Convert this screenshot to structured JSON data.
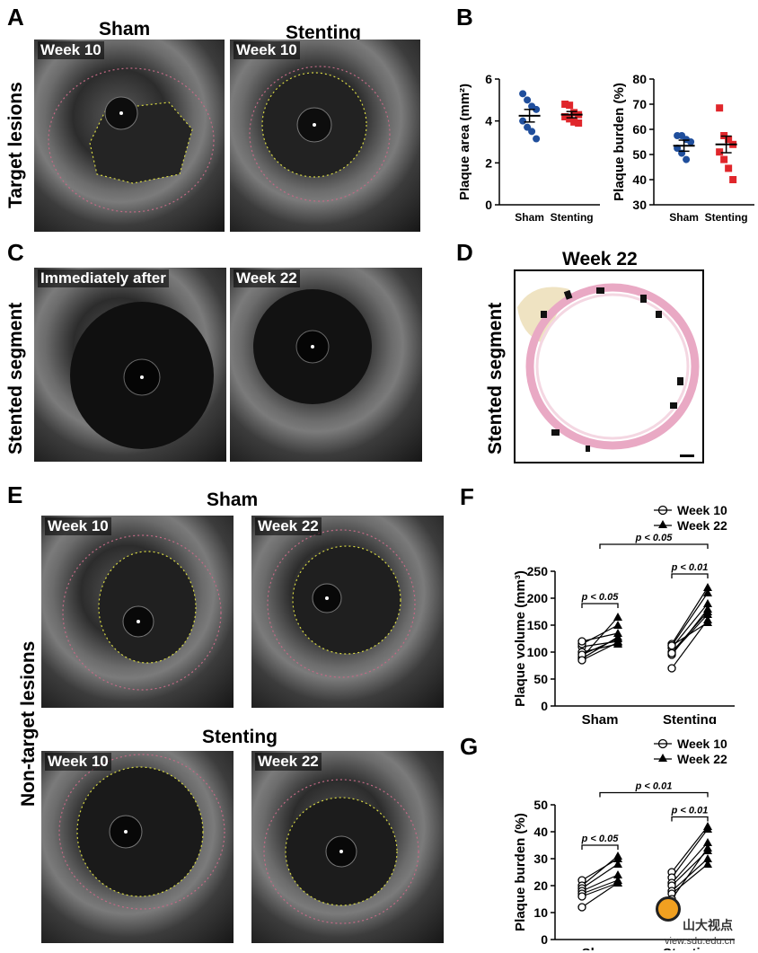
{
  "panels": {
    "A": {
      "letter": "A",
      "side_label": "Target lesions",
      "col_sham": "Sham",
      "col_stent": "Stenting",
      "img1_tag": "Week 10",
      "img2_tag": "Week 10"
    },
    "B": {
      "letter": "B"
    },
    "C": {
      "letter": "C",
      "side_label": "Stented segment",
      "img1_tag": "Immediately after",
      "img2_tag": "Week 22"
    },
    "D": {
      "letter": "D",
      "title": "Week 22",
      "side_label": "Stented segment"
    },
    "E": {
      "letter": "E",
      "side_label": "Non-target lesions",
      "sham_title": "Sham",
      "stent_title": "Stenting",
      "tags": [
        "Week 10",
        "Week 22",
        "Week 10",
        "Week 22"
      ]
    },
    "F": {
      "letter": "F"
    },
    "G": {
      "letter": "G"
    }
  },
  "watermark": {
    "brand": "山大视点",
    "url": "view.sdu.edu.cn"
  },
  "chart_data": [
    {
      "id": "B1",
      "type": "scatter",
      "ylabel": "Plaque area (mm²)",
      "ylim": [
        0,
        6
      ],
      "yticks": [
        0,
        2,
        4,
        6
      ],
      "categories": [
        "Sham",
        "Stenting"
      ],
      "series": [
        {
          "name": "Sham",
          "color": "#1f4e9c",
          "marker": "circle",
          "mean": 4.25,
          "sem": 0.3,
          "values": [
            5.3,
            5.0,
            4.7,
            4.55,
            4.0,
            3.7,
            3.5,
            3.15
          ]
        },
        {
          "name": "Stenting",
          "color": "#e0262b",
          "marker": "square",
          "mean": 4.3,
          "sem": 0.15,
          "values": [
            4.8,
            4.75,
            4.4,
            4.3,
            4.2,
            4.1,
            3.95,
            3.9
          ]
        }
      ]
    },
    {
      "id": "B2",
      "type": "scatter",
      "ylabel": "Plaque burden (%)",
      "ylim": [
        30,
        80
      ],
      "yticks": [
        30,
        40,
        50,
        60,
        70,
        80
      ],
      "categories": [
        "Sham",
        "Stenting"
      ],
      "series": [
        {
          "name": "Sham",
          "color": "#1f4e9c",
          "marker": "circle",
          "mean": 53.5,
          "sem": 2.2,
          "values": [
            57.5,
            57.5,
            56,
            55,
            52.5,
            50.5,
            48
          ]
        },
        {
          "name": "Stenting",
          "color": "#e0262b",
          "marker": "square",
          "mean": 54,
          "sem": 3.3,
          "values": [
            68.5,
            57.5,
            56,
            54,
            51,
            48,
            44.5,
            40
          ]
        }
      ]
    },
    {
      "id": "F",
      "type": "line",
      "ylabel": "Plaque volume (mm³)",
      "ylim": [
        0,
        250
      ],
      "yticks": [
        0,
        50,
        100,
        150,
        200,
        250
      ],
      "categories": [
        "Sham",
        "Stenting"
      ],
      "legend": [
        "Week 10",
        "Week 22"
      ],
      "pairs": [
        [
          [
            90,
            165
          ],
          [
            88,
            128
          ],
          [
            110,
            120
          ],
          [
            115,
            150
          ],
          [
            100,
            115
          ],
          [
            120,
            135
          ],
          [
            95,
            125
          ],
          [
            85,
            118
          ]
        ],
        [
          [
            115,
            220
          ],
          [
            112,
            210
          ],
          [
            100,
            175
          ],
          [
            95,
            180
          ],
          [
            108,
            190
          ],
          [
            70,
            160
          ],
          [
            112,
            155
          ],
          [
            98,
            170
          ]
        ]
      ],
      "annotations": [
        {
          "text": "p < 0.05",
          "from": [
            0,
            0.5
          ],
          "y": 190
        },
        {
          "text": "p < 0.01",
          "from": [
            1,
            1.5
          ],
          "y": 245
        },
        {
          "text": "p < 0.05",
          "from": [
            0.5,
            1.5
          ],
          "y": 300
        }
      ]
    },
    {
      "id": "G",
      "type": "line",
      "ylabel": "Plaque burden (%)",
      "ylim": [
        0,
        50
      ],
      "yticks": [
        0,
        10,
        20,
        30,
        40,
        50
      ],
      "categories": [
        "Sham",
        "Stenting"
      ],
      "legend": [
        "Week 10",
        "Week 22"
      ],
      "pairs": [
        [
          [
            22,
            30
          ],
          [
            20,
            31
          ],
          [
            19,
            28
          ],
          [
            18,
            24
          ],
          [
            17,
            22
          ],
          [
            16,
            21
          ],
          [
            12,
            21
          ]
        ],
        [
          [
            25,
            42
          ],
          [
            23,
            41
          ],
          [
            21,
            36
          ],
          [
            20,
            33
          ],
          [
            18,
            30
          ],
          [
            17,
            28
          ],
          [
            15,
            34
          ]
        ]
      ],
      "annotations": [
        {
          "text": "p < 0.05",
          "from": [
            0,
            0.5
          ],
          "y": 35
        },
        {
          "text": "p < 0.01",
          "from": [
            1,
            1.5
          ],
          "y": 45.5
        },
        {
          "text": "p < 0.01",
          "from": [
            0.5,
            1.5
          ],
          "y": 54.5
        }
      ]
    }
  ]
}
